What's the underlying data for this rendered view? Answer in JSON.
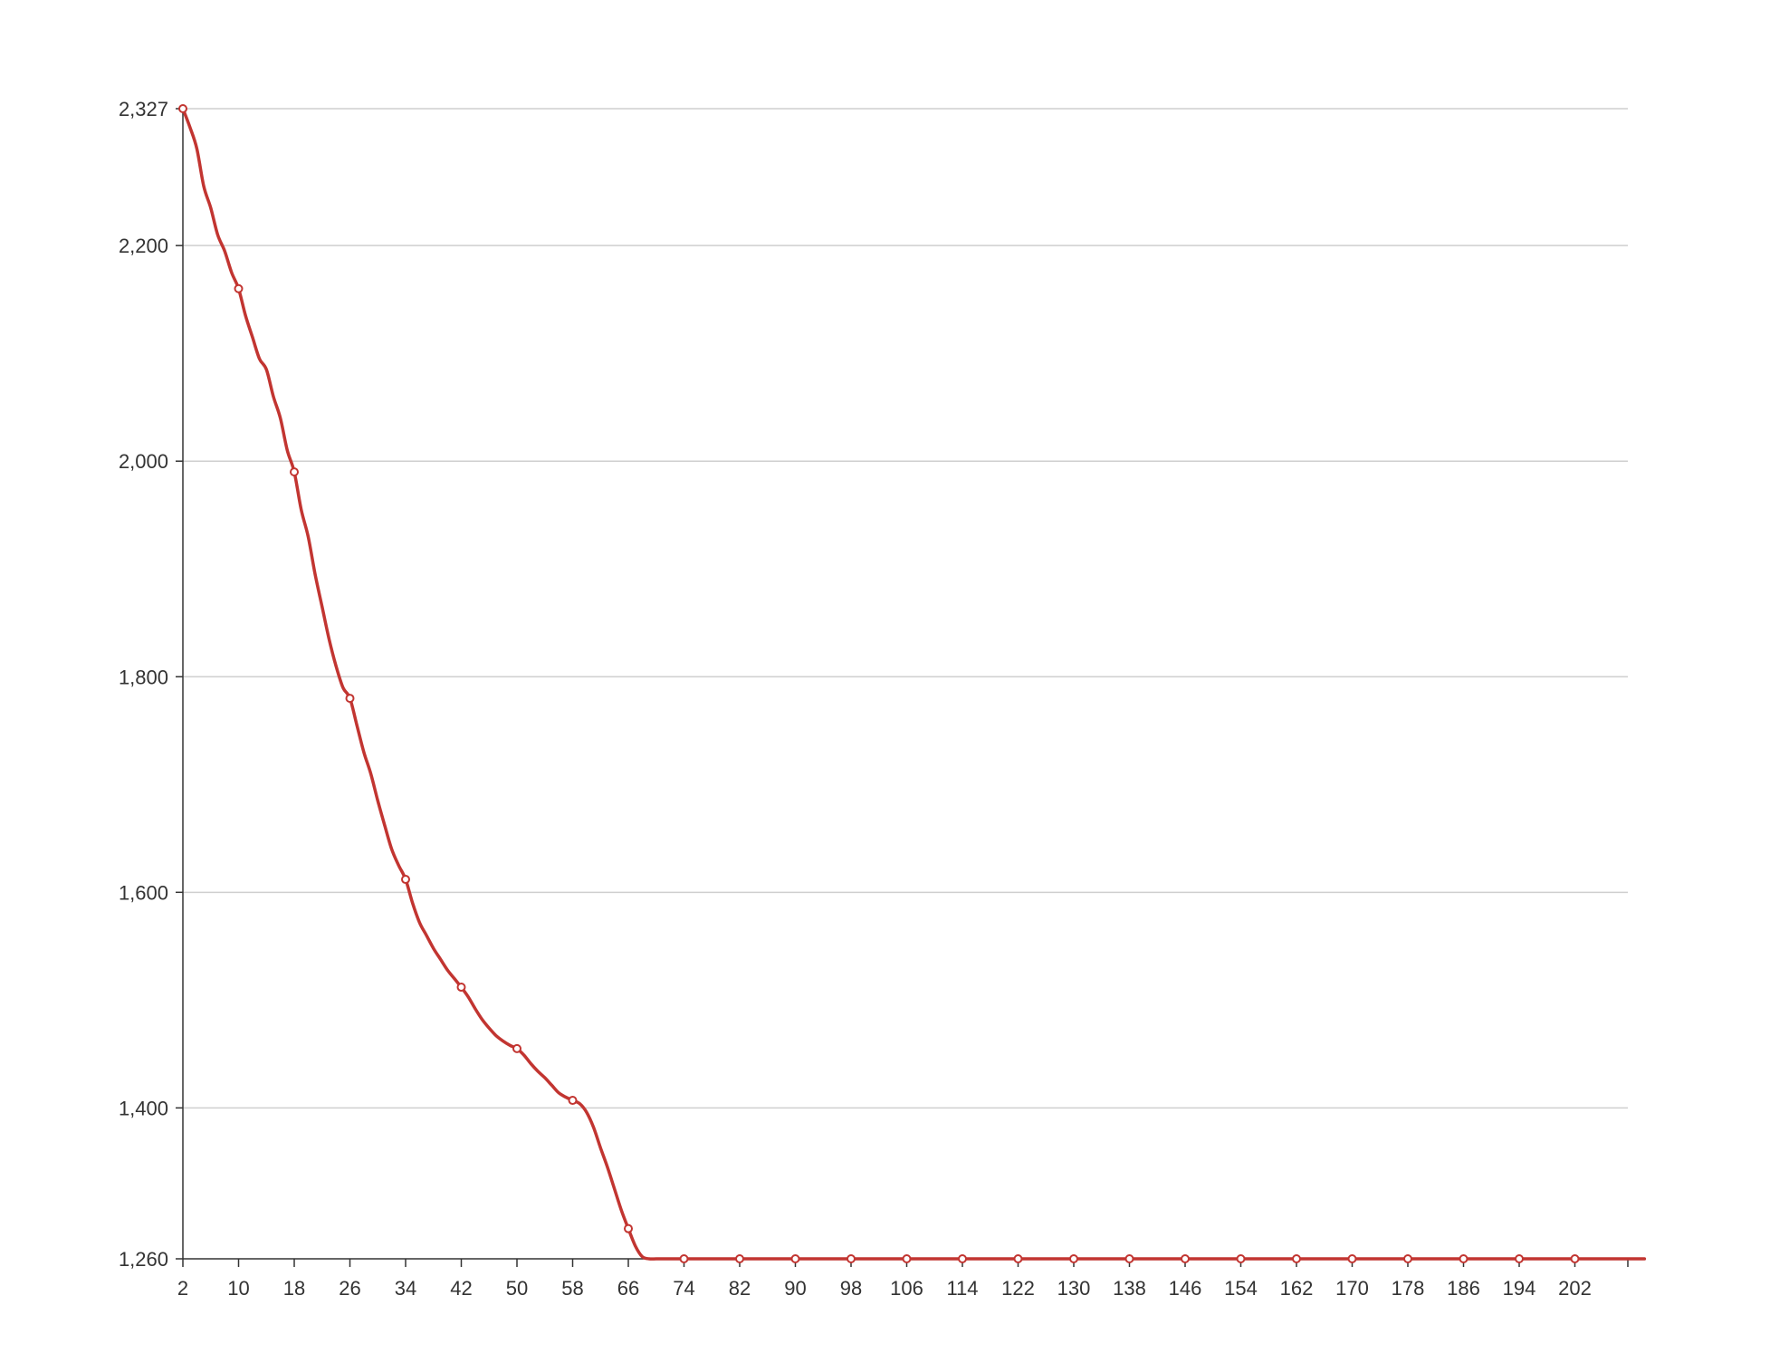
{
  "chart_data": {
    "type": "line",
    "title": "",
    "xlabel": "",
    "ylabel": "",
    "x_start": 2,
    "x_end": 212,
    "x_tick_step": 8,
    "x_tick_labels": [
      "2",
      "10",
      "18",
      "26",
      "34",
      "42",
      "50",
      "58",
      "66",
      "74",
      "82",
      "90",
      "98",
      "106",
      "114",
      "122",
      "130",
      "138",
      "146",
      "154",
      "162",
      "170",
      "178",
      "186",
      "194",
      "202"
    ],
    "y_ticks": [
      1260,
      1400,
      1600,
      1800,
      2000,
      2200,
      2327
    ],
    "y_tick_labels": [
      "1,260",
      "1,400",
      "1,600",
      "1,800",
      "2,000",
      "2,200",
      "2,327"
    ],
    "ylim": [
      1260,
      2327
    ],
    "grid": "horizontal",
    "line_color": "#c23531",
    "marker_every": 8,
    "series": [
      {
        "x": [
          2,
          3,
          4,
          5,
          6,
          7,
          8,
          9,
          10,
          11,
          12,
          13,
          14,
          15,
          16,
          17,
          18,
          19,
          20,
          21,
          22,
          23,
          24,
          25,
          26,
          27,
          28,
          29,
          30,
          31,
          32,
          33,
          34,
          35,
          36,
          37,
          38,
          39,
          40,
          41,
          42,
          43,
          44,
          45,
          46,
          47,
          48,
          49,
          50,
          51,
          52,
          53,
          54,
          55,
          56,
          57,
          58,
          59,
          60,
          61,
          62,
          63,
          64,
          65,
          66,
          67,
          68,
          69,
          70,
          71,
          72,
          73,
          74,
          82,
          90,
          98,
          106,
          114,
          122,
          130,
          138,
          146,
          154,
          162,
          170,
          178,
          186,
          194,
          202,
          210,
          212
        ],
        "values": [
          2327,
          2310,
          2290,
          2255,
          2235,
          2210,
          2195,
          2175,
          2160,
          2135,
          2115,
          2095,
          2085,
          2060,
          2040,
          2010,
          1990,
          1955,
          1930,
          1895,
          1865,
          1835,
          1810,
          1790,
          1780,
          1755,
          1730,
          1710,
          1685,
          1662,
          1640,
          1625,
          1612,
          1590,
          1572,
          1560,
          1548,
          1538,
          1528,
          1520,
          1512,
          1503,
          1492,
          1482,
          1474,
          1467,
          1462,
          1458,
          1455,
          1449,
          1441,
          1434,
          1428,
          1421,
          1414,
          1410,
          1407,
          1404,
          1396,
          1382,
          1363,
          1345,
          1325,
          1305,
          1288,
          1272,
          1262,
          1260,
          1260,
          1260,
          1260,
          1260,
          1260,
          1260,
          1260,
          1260,
          1260,
          1260,
          1260,
          1260,
          1260,
          1260,
          1260,
          1260,
          1260,
          1260,
          1260,
          1260,
          1260,
          1260,
          1260
        ]
      }
    ]
  }
}
